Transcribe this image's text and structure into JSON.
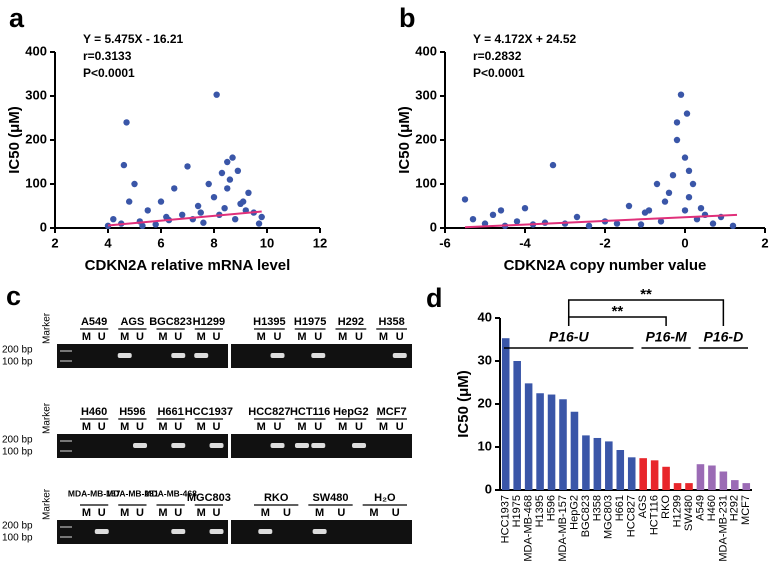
{
  "chart_data": [
    {
      "type": "scatter",
      "panel": "a",
      "annotations": [
        "Y = 5.475X - 16.21",
        "r=0.3133",
        "P<0.0001"
      ],
      "x_label": "CDKN2A relative mRNA level",
      "y_label": "IC50 (μM)",
      "color": "#3a56a8",
      "x": [
        4.0,
        4.2,
        4.5,
        4.6,
        4.7,
        4.8,
        5.0,
        5.2,
        5.5,
        5.8,
        6.0,
        6.2,
        6.5,
        6.8,
        7.0,
        7.2,
        7.4,
        7.6,
        7.8,
        8.0,
        8.1,
        8.2,
        8.3,
        8.4,
        8.5,
        8.6,
        8.7,
        8.8,
        8.9,
        9.0,
        9.2,
        9.3,
        9.5,
        9.7,
        9.8,
        5.3,
        6.3,
        7.5,
        8.5,
        9.1
      ],
      "values": [
        5,
        20,
        10,
        143,
        240,
        60,
        100,
        15,
        40,
        8,
        60,
        25,
        90,
        30,
        140,
        20,
        50,
        12,
        100,
        70,
        303,
        30,
        125,
        45,
        150,
        110,
        160,
        20,
        130,
        55,
        40,
        80,
        35,
        10,
        25,
        5,
        18,
        35,
        90,
        60
      ],
      "fit": {
        "color": "#e0307a",
        "x": [
          4,
          9.8
        ],
        "y": [
          5.69,
          37.45
        ]
      },
      "xlim": [
        2,
        12
      ],
      "xticks": [
        2,
        4,
        6,
        8,
        10,
        12
      ],
      "ylim": [
        0,
        400
      ],
      "yticks": [
        0,
        100,
        200,
        300,
        400
      ]
    },
    {
      "type": "scatter",
      "panel": "b",
      "annotations": [
        "Y = 4.172X + 24.52",
        "r=0.2832",
        "P<0.0001"
      ],
      "x_label": "CDKN2A copy number value",
      "y_label": "IC50 (μM)",
      "color": "#3a56a8",
      "x": [
        -5.5,
        -5.3,
        -5.0,
        -4.8,
        -4.5,
        -4.2,
        -4.0,
        -3.8,
        -3.5,
        -3.3,
        -3.0,
        -2.7,
        -2.4,
        -2.0,
        -1.7,
        -1.4,
        -1.1,
        -0.9,
        -0.7,
        -0.5,
        -0.4,
        -0.3,
        -0.2,
        -0.1,
        0,
        0,
        0.1,
        0.1,
        0.2,
        0.3,
        0.4,
        0.5,
        0.7,
        0.9,
        1.2,
        -0.6,
        -0.2,
        0.05,
        -1.0,
        -4.6
      ],
      "values": [
        65,
        20,
        10,
        30,
        5,
        15,
        45,
        8,
        12,
        143,
        10,
        25,
        5,
        15,
        10,
        50,
        8,
        40,
        100,
        60,
        80,
        120,
        240,
        303,
        160,
        40,
        130,
        70,
        100,
        20,
        45,
        30,
        10,
        25,
        5,
        15,
        200,
        260,
        35,
        40
      ],
      "fit": {
        "color": "#e0307a",
        "x": [
          -5.5,
          1.3
        ],
        "y": [
          1.57,
          29.94
        ]
      },
      "xlim": [
        -6,
        2
      ],
      "xticks": [
        -6,
        -4,
        -2,
        0,
        2
      ],
      "ylim": [
        0,
        400
      ],
      "yticks": [
        0,
        100,
        200,
        300,
        400
      ]
    },
    {
      "type": "bar",
      "panel": "d",
      "y_label": "IC50 (μM)",
      "categories": [
        "HCC1937",
        "H1975",
        "MDA-MB-468",
        "H1395",
        "H596",
        "MDA-MB-157",
        "HepG2",
        "BGC823",
        "H358",
        "MGC803",
        "H661",
        "HCC827",
        "AGS",
        "HCT116",
        "RKO",
        "H1299",
        "SW480",
        "A549",
        "H460",
        "MDA-MB-231",
        "H292",
        "MCF7"
      ],
      "series": [
        {
          "name": "P16-U",
          "color": "#3a56a8",
          "values": [
            35.3,
            30.0,
            24.8,
            22.5,
            22.2,
            21.1,
            18.2,
            12.7,
            12.1,
            11.3,
            9.3,
            7.6,
            null,
            null,
            null,
            null,
            null,
            null,
            null,
            null,
            null,
            null
          ]
        },
        {
          "name": "P16-M",
          "color": "#e8262b",
          "values": [
            null,
            null,
            null,
            null,
            null,
            null,
            null,
            null,
            null,
            null,
            null,
            null,
            7.4,
            6.9,
            5.4,
            1.6,
            1.6,
            null,
            null,
            null,
            null,
            null
          ]
        },
        {
          "name": "P16-D",
          "color": "#9b6bb5",
          "values": [
            null,
            null,
            null,
            null,
            null,
            null,
            null,
            null,
            null,
            null,
            null,
            null,
            null,
            null,
            null,
            null,
            null,
            6.0,
            5.7,
            4.3,
            2.3,
            1.6
          ]
        }
      ],
      "significance": [
        {
          "between": [
            0,
            1
          ],
          "label": "**"
        },
        {
          "between": [
            0,
            2
          ],
          "label": "**"
        }
      ],
      "ylim": [
        0,
        40
      ],
      "yticks": [
        0,
        10,
        20,
        30,
        40
      ]
    }
  ],
  "gel": {
    "panel": "c",
    "size_labels": [
      "200 bp",
      "100 bp"
    ],
    "rows": [
      {
        "blocks": [
          {
            "marker": "Marker",
            "samples": [
              {
                "name": "A549",
                "lanes": [
                  "M",
                  "U"
                ],
                "bands": []
              },
              {
                "name": "AGS",
                "lanes": [
                  "M",
                  "U"
                ],
                "bands": [
                  "M"
                ]
              },
              {
                "name": "BGC823",
                "lanes": [
                  "M",
                  "U"
                ],
                "bands": [
                  "U"
                ]
              },
              {
                "name": "H1299",
                "lanes": [
                  "M",
                  "U"
                ],
                "bands": [
                  "M"
                ]
              }
            ]
          },
          {
            "samples": [
              {
                "name": "H1395",
                "lanes": [
                  "M",
                  "U"
                ],
                "bands": [
                  "U"
                ]
              },
              {
                "name": "H1975",
                "lanes": [
                  "M",
                  "U"
                ],
                "bands": [
                  "U"
                ]
              },
              {
                "name": "H292",
                "lanes": [
                  "M",
                  "U"
                ],
                "bands": []
              },
              {
                "name": "H358",
                "lanes": [
                  "M",
                  "U"
                ],
                "bands": [
                  "U"
                ]
              }
            ]
          }
        ]
      },
      {
        "blocks": [
          {
            "marker": "Marker",
            "samples": [
              {
                "name": "H460",
                "lanes": [
                  "M",
                  "U"
                ],
                "bands": []
              },
              {
                "name": "H596",
                "lanes": [
                  "M",
                  "U"
                ],
                "bands": [
                  "U"
                ]
              },
              {
                "name": "H661",
                "lanes": [
                  "M",
                  "U"
                ],
                "bands": [
                  "U"
                ]
              },
              {
                "name": "HCC1937",
                "lanes": [
                  "M",
                  "U"
                ],
                "bands": [
                  "U"
                ]
              }
            ]
          },
          {
            "samples": [
              {
                "name": "HCC827",
                "lanes": [
                  "M",
                  "U"
                ],
                "bands": [
                  "U"
                ]
              },
              {
                "name": "HCT116",
                "lanes": [
                  "M",
                  "U"
                ],
                "bands": [
                  "M",
                  "U"
                ]
              },
              {
                "name": "HepG2",
                "lanes": [
                  "M",
                  "U"
                ],
                "bands": [
                  "U"
                ]
              },
              {
                "name": "MCF7",
                "lanes": [
                  "M",
                  "U"
                ],
                "bands": []
              }
            ]
          }
        ]
      },
      {
        "blocks": [
          {
            "marker": "Marker",
            "samples": [
              {
                "name": "MDA-MB-157",
                "lanes": [
                  "M",
                  "U"
                ],
                "bands": [
                  "U"
                ]
              },
              {
                "name": "MDA-MB-231",
                "lanes": [
                  "M",
                  "U"
                ],
                "bands": []
              },
              {
                "name": "MDA-MB-468",
                "lanes": [
                  "M",
                  "U"
                ],
                "bands": [
                  "U"
                ]
              },
              {
                "name": "MGC803",
                "lanes": [
                  "M",
                  "U"
                ],
                "bands": [
                  "U"
                ]
              }
            ]
          },
          {
            "samples": [
              {
                "name": "RKO",
                "lanes": [
                  "M",
                  "U"
                ],
                "bands": [
                  "M"
                ]
              },
              {
                "name": "SW480",
                "lanes": [
                  "M",
                  "U"
                ],
                "bands": [
                  "M"
                ]
              },
              {
                "name": "H₂O",
                "lanes": [
                  "M",
                  "U"
                ],
                "bands": []
              }
            ]
          }
        ]
      }
    ]
  }
}
